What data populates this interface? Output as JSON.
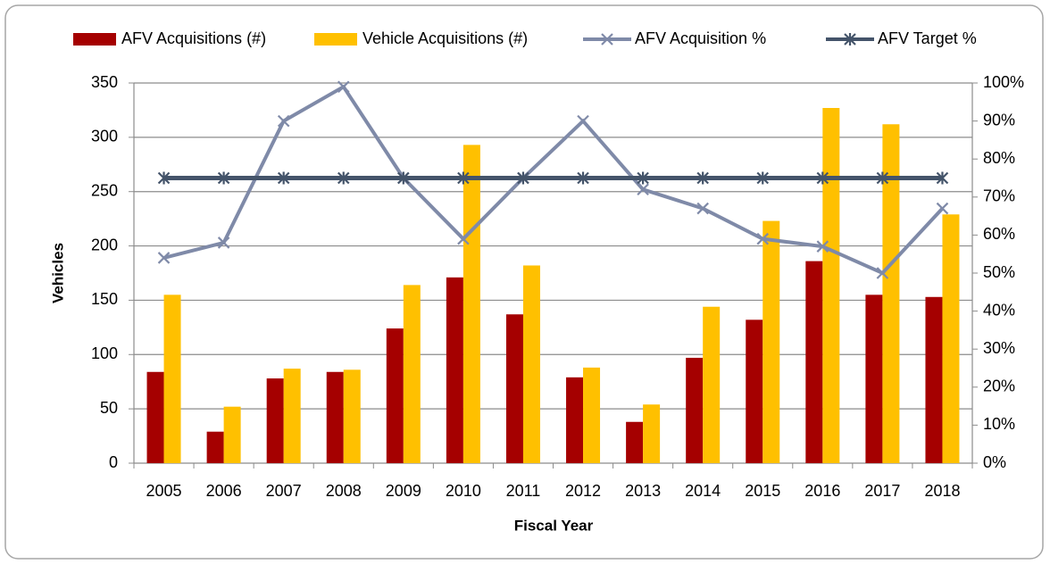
{
  "chart_data": {
    "type": "bar",
    "x_label": "Fiscal Year",
    "y_label": "Vehicles",
    "categories": [
      "2005",
      "2006",
      "2007",
      "2008",
      "2009",
      "2010",
      "2011",
      "2012",
      "2013",
      "2014",
      "2015",
      "2016",
      "2017",
      "2018"
    ],
    "series": [
      {
        "name": "AFV Acquisitions (#)",
        "type": "bar",
        "color": "#a50000",
        "values": [
          84,
          29,
          78,
          84,
          124,
          171,
          137,
          79,
          38,
          97,
          132,
          186,
          155,
          153
        ]
      },
      {
        "name": "Vehicle Acquisitions (#)",
        "type": "bar",
        "color": "#ffc000",
        "values": [
          155,
          52,
          87,
          86,
          164,
          293,
          182,
          88,
          54,
          144,
          223,
          327,
          312,
          229
        ]
      },
      {
        "name": "AFV Acquisition %",
        "type": "line",
        "marker": "x",
        "axis": "y2",
        "color": "#7f8aa8",
        "values": [
          54,
          58,
          90,
          99,
          75,
          59,
          75,
          90,
          72,
          67,
          59,
          57,
          50,
          67
        ]
      },
      {
        "name": "AFV Target %",
        "type": "line",
        "marker": "asterisk",
        "axis": "y2",
        "color": "#44546a",
        "values": [
          75,
          75,
          75,
          75,
          75,
          75,
          75,
          75,
          75,
          75,
          75,
          75,
          75,
          75
        ]
      }
    ],
    "ylim": [
      0,
      350
    ],
    "yticks": [
      0,
      50,
      100,
      150,
      200,
      250,
      300,
      350
    ],
    "y2lim": [
      0,
      100
    ],
    "y2ticks": [
      {
        "value": 0,
        "label": "0%"
      },
      {
        "value": 10,
        "label": "10%"
      },
      {
        "value": 20,
        "label": "20%"
      },
      {
        "value": 30,
        "label": "30%"
      },
      {
        "value": 40,
        "label": "40%"
      },
      {
        "value": 50,
        "label": "50%"
      },
      {
        "value": 60,
        "label": "60%"
      },
      {
        "value": 70,
        "label": "70%"
      },
      {
        "value": 80,
        "label": "80%"
      },
      {
        "value": 90,
        "label": "90%"
      },
      {
        "value": 100,
        "label": "100%"
      }
    ],
    "grid": true,
    "legend": "top"
  }
}
